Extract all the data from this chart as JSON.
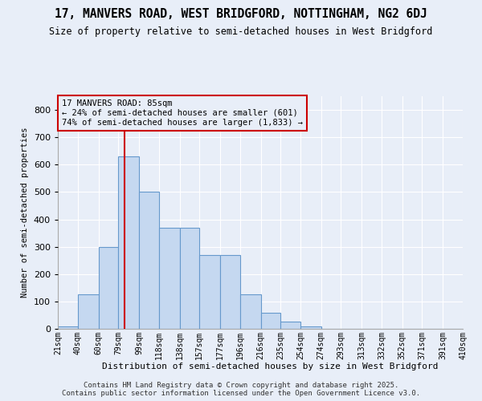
{
  "title": "17, MANVERS ROAD, WEST BRIDGFORD, NOTTINGHAM, NG2 6DJ",
  "subtitle": "Size of property relative to semi-detached houses in West Bridgford",
  "xlabel": "Distribution of semi-detached houses by size in West Bridgford",
  "ylabel": "Number of semi-detached properties",
  "footer_line1": "Contains HM Land Registry data © Crown copyright and database right 2025.",
  "footer_line2": "Contains public sector information licensed under the Open Government Licence v3.0.",
  "annotation_title": "17 MANVERS ROAD: 85sqm",
  "annotation_line1": "← 24% of semi-detached houses are smaller (601)",
  "annotation_line2": "74% of semi-detached houses are larger (1,833) →",
  "property_size": 85,
  "bin_starts": [
    21,
    40,
    60,
    79,
    99,
    118,
    138,
    157,
    177,
    196,
    216,
    235,
    254,
    274,
    293,
    313,
    332,
    352,
    371,
    391
  ],
  "bin_last_edge": 410,
  "bin_labels": [
    "21sqm",
    "40sqm",
    "60sqm",
    "79sqm",
    "99sqm",
    "118sqm",
    "138sqm",
    "157sqm",
    "177sqm",
    "196sqm",
    "216sqm",
    "235sqm",
    "254sqm",
    "274sqm",
    "293sqm",
    "313sqm",
    "332sqm",
    "352sqm",
    "371sqm",
    "391sqm",
    "410sqm"
  ],
  "values": [
    10,
    125,
    300,
    630,
    500,
    370,
    370,
    270,
    270,
    125,
    60,
    25,
    10,
    0,
    0,
    0,
    0,
    0,
    0,
    0
  ],
  "bar_color": "#c5d8f0",
  "bar_edge_color": "#6699cc",
  "vline_color": "#cc0000",
  "background_color": "#e8eef8",
  "grid_color": "#ffffff",
  "annotation_box_color": "#cc0000",
  "ylim": [
    0,
    850
  ],
  "yticks": [
    0,
    100,
    200,
    300,
    400,
    500,
    600,
    700,
    800
  ]
}
